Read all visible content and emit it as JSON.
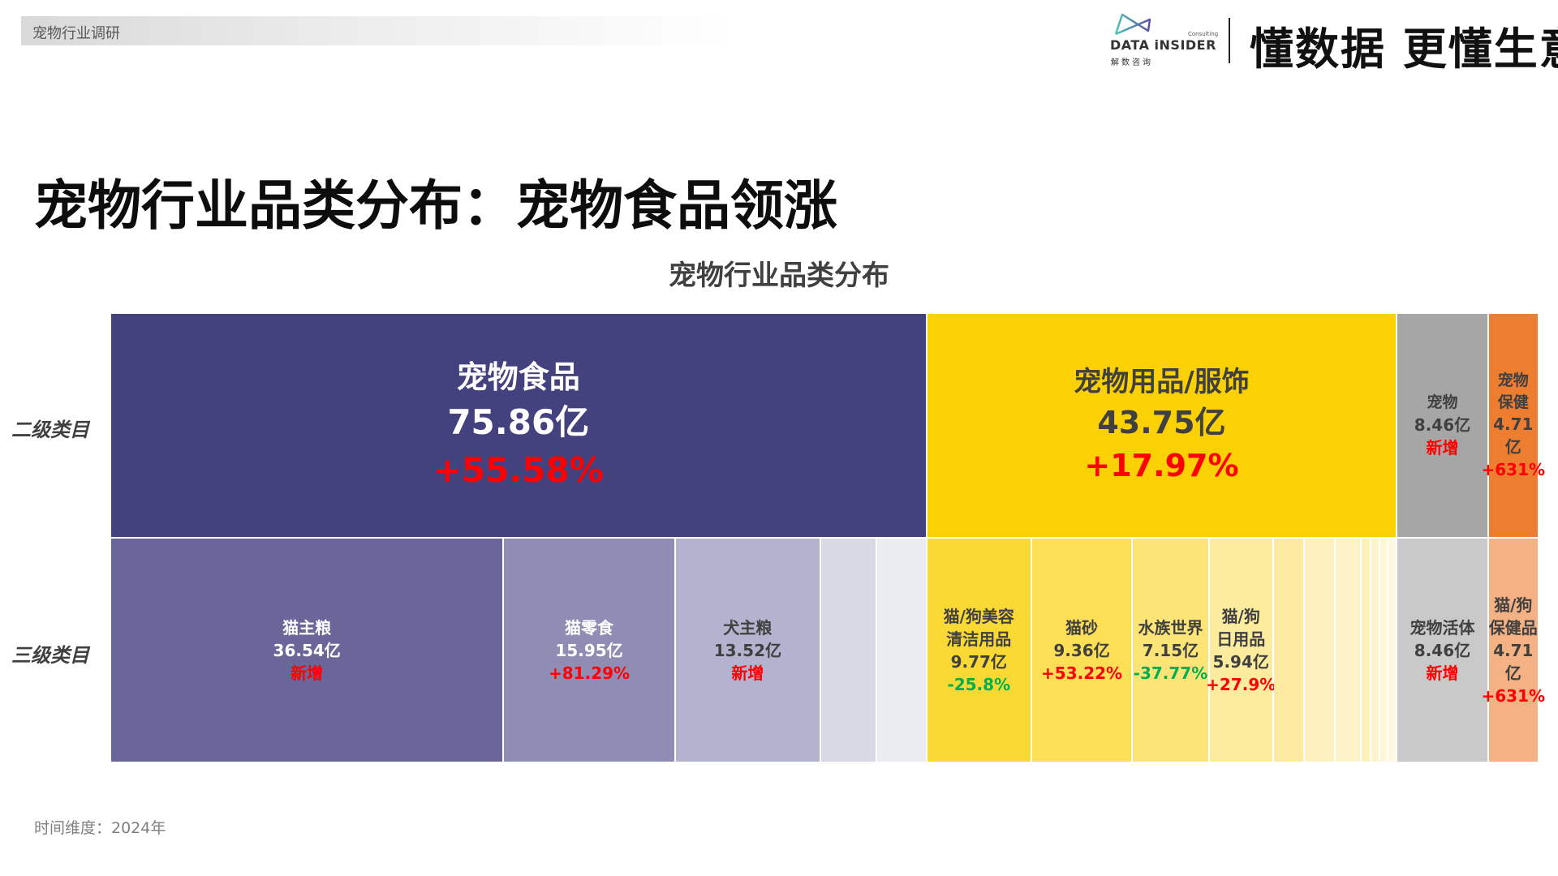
{
  "header": {
    "tab_label": "宠物行业调研",
    "logo": {
      "brand": "DATA iNSIDER",
      "consulting": "Consulting",
      "cn": "解数咨询"
    },
    "slogan": "懂数据 更懂生意"
  },
  "page_title": "宠物行业品类分布：宠物食品领涨",
  "row_labels": {
    "level2": "二级类目",
    "level3": "三级类目"
  },
  "footnote": "时间维度：2024年",
  "colors": {
    "up": "#ff0000",
    "down": "#00b050"
  },
  "chart_data": {
    "type": "treemap",
    "title": "宠物行业品类分布",
    "unit": "亿",
    "level2": [
      {
        "name": "宠物食品",
        "value": 75.86,
        "value_label": "75.86亿",
        "growth": "+55.58%",
        "growth_dir": "up",
        "color": "#44417f",
        "text_color": "#ffffff"
      },
      {
        "name": "宠物用品/服饰",
        "value": 43.75,
        "value_label": "43.75亿",
        "growth": "+17.97%",
        "growth_dir": "up",
        "color": "#fcd104",
        "text_color": "#404040"
      },
      {
        "name": "宠物",
        "value": 8.46,
        "value_label": "8.46亿",
        "growth": "新增",
        "growth_dir": "up",
        "color": "#a6a6a6",
        "text_color": "#404040"
      },
      {
        "name": "宠物\n保健",
        "value": 4.71,
        "value_label": "4.71亿",
        "growth": "+631%",
        "growth_dir": "up",
        "color": "#ed7d31",
        "text_color": "#404040"
      }
    ],
    "level3": [
      [
        {
          "name": "猫主粮",
          "value": 36.54,
          "value_label": "36.54亿",
          "growth": "新增",
          "growth_dir": "up",
          "color": "#6a6699",
          "text_color": "#ffffff"
        },
        {
          "name": "猫零食",
          "value": 15.95,
          "value_label": "15.95亿",
          "growth": "+81.29%",
          "growth_dir": "up",
          "color": "#8f8db3",
          "text_color": "#ffffff"
        },
        {
          "name": "犬主粮",
          "value": 13.52,
          "value_label": "13.52亿",
          "growth": "新增",
          "growth_dir": "up",
          "color": "#b3b2cf",
          "text_color": "#404040"
        },
        {
          "name": "",
          "value": 5.2,
          "color": "#d9d9e6"
        },
        {
          "name": "",
          "value": 4.65,
          "color": "#ebebf2"
        }
      ],
      [
        {
          "name": "猫/狗美容\n清洁用品",
          "value": 9.77,
          "value_label": "9.77亿",
          "growth": "-25.8%",
          "growth_dir": "down",
          "color": "#fbd935",
          "text_color": "#404040"
        },
        {
          "name": "猫砂",
          "value": 9.36,
          "value_label": "9.36亿",
          "growth": "+53.22%",
          "growth_dir": "up",
          "color": "#fcdf55",
          "text_color": "#404040"
        },
        {
          "name": "水族世界",
          "value": 7.15,
          "value_label": "7.15亿",
          "growth": "-37.77%",
          "growth_dir": "down",
          "color": "#fde477",
          "text_color": "#404040"
        },
        {
          "name": "猫/狗\n日用品",
          "value": 5.94,
          "value_label": "5.94亿",
          "growth": "+27.9%",
          "growth_dir": "up",
          "color": "#fdeb9e",
          "text_color": "#404040"
        },
        {
          "name": "",
          "value": 2.87,
          "color": "#fdeaa0"
        },
        {
          "name": "",
          "value": 2.87,
          "color": "#fef1bf"
        },
        {
          "name": "",
          "value": 2.41,
          "color": "#fef3c8"
        },
        {
          "name": "",
          "value": 0.9,
          "color": "#fef1bb"
        },
        {
          "name": "",
          "value": 0.9,
          "color": "#fef4cc"
        },
        {
          "name": "",
          "value": 0.75,
          "color": "#fef6d6"
        },
        {
          "name": "",
          "value": 0.83,
          "color": "#fef8e0"
        }
      ],
      [
        {
          "name": "宠物活体",
          "value": 8.46,
          "value_label": "8.46亿",
          "growth": "新增",
          "growth_dir": "up",
          "color": "#c9c9c9",
          "text_color": "#404040"
        }
      ],
      [
        {
          "name": "猫/狗\n保健品",
          "value": 4.71,
          "value_label": "4.71亿",
          "growth": "+631%",
          "growth_dir": "up",
          "color": "#f4b183",
          "text_color": "#404040"
        }
      ]
    ]
  }
}
